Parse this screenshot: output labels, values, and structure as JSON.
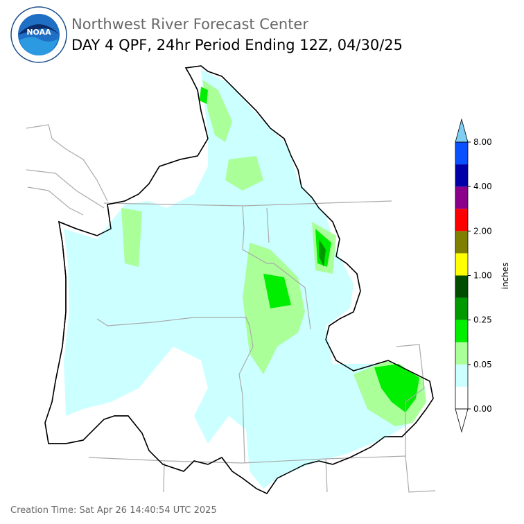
{
  "header": {
    "title": "Northwest River Forecast Center",
    "subtitle": "DAY 4 QPF, 24hr Period Ending 12Z, 04/30/25",
    "logo_text": "NOAA"
  },
  "legend": {
    "unit": "inches",
    "colors": [
      "#ffffff",
      "#ccffff",
      "#aaff99",
      "#00ee00",
      "#009900",
      "#004d00",
      "#ffff00",
      "#808000",
      "#ff0000",
      "#8a008a",
      "#0000a8",
      "#0a50ff"
    ],
    "over_color": "#7ecef4",
    "ticks": [
      "0.00",
      "0.05",
      "0.25",
      "1.00",
      "2.00",
      "4.00",
      "8.00"
    ]
  },
  "footer": {
    "creation_time": "Creation Time: Sat Apr 26 14:40:54 UTC 2025"
  }
}
